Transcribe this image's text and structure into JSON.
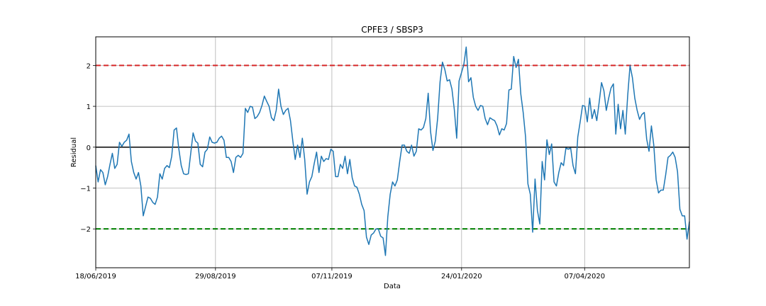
{
  "chart_data": {
    "type": "line",
    "title": "CPFE3 / SBSP3",
    "xlabel": "Data",
    "ylabel": "Residual",
    "xlim": [
      "18/06/2019",
      "09/06/2020"
    ],
    "ylim": [
      -2.95,
      2.7
    ],
    "grid": true,
    "x_ticks": [
      "18/06/2019",
      "29/08/2019",
      "07/11/2019",
      "24/01/2020",
      "07/04/2020"
    ],
    "y_ticks": [
      -2,
      -1,
      0,
      1,
      2
    ],
    "reference_lines": [
      {
        "value": 2,
        "color": "#d62728",
        "style": "dashed"
      },
      {
        "value": 0,
        "color": "#000000",
        "style": "solid"
      },
      {
        "value": -2,
        "color": "#008000",
        "style": "dashed"
      }
    ],
    "series": [
      {
        "color": "#1f77b4",
        "values": [
          -0.45,
          -0.85,
          -0.55,
          -0.62,
          -0.92,
          -0.72,
          -0.42,
          -0.15,
          -0.52,
          -0.42,
          0.12,
          0.02,
          0.12,
          0.17,
          0.32,
          -0.35,
          -0.62,
          -0.78,
          -0.62,
          -0.95,
          -1.68,
          -1.45,
          -1.22,
          -1.25,
          -1.35,
          -1.4,
          -1.22,
          -0.65,
          -0.78,
          -0.52,
          -0.45,
          -0.5,
          -0.22,
          0.42,
          0.47,
          -0.05,
          -0.45,
          -0.65,
          -0.67,
          -0.65,
          -0.15,
          0.35,
          0.15,
          0.1,
          -0.42,
          -0.48,
          -0.12,
          -0.05,
          0.25,
          0.12,
          0.1,
          0.12,
          0.22,
          0.27,
          0.17,
          -0.25,
          -0.25,
          -0.35,
          -0.62,
          -0.25,
          -0.2,
          -0.25,
          -0.15,
          0.95,
          0.85,
          1.0,
          0.98,
          0.7,
          0.75,
          0.85,
          1.02,
          1.25,
          1.12,
          1.0,
          0.72,
          0.65,
          0.9,
          1.42,
          1.0,
          0.8,
          0.9,
          0.95,
          0.65,
          0.15,
          -0.3,
          0.05,
          -0.25,
          0.22,
          -0.3,
          -1.15,
          -0.85,
          -0.72,
          -0.4,
          -0.12,
          -0.62,
          -0.22,
          -0.35,
          -0.28,
          -0.3,
          -0.05,
          -0.1,
          -0.72,
          -0.72,
          -0.42,
          -0.52,
          -0.22,
          -0.65,
          -0.3,
          -0.75,
          -0.95,
          -0.98,
          -1.15,
          -1.4,
          -1.55,
          -2.2,
          -2.38,
          -2.15,
          -2.1,
          -2.0,
          -2.0,
          -2.18,
          -2.22,
          -2.65,
          -1.7,
          -1.15,
          -0.85,
          -0.95,
          -0.8,
          -0.35,
          0.05,
          0.05,
          -0.1,
          -0.15,
          0.05,
          -0.22,
          -0.1,
          0.45,
          0.42,
          0.48,
          0.7,
          1.32,
          0.38,
          -0.08,
          0.15,
          0.72,
          1.6,
          2.08,
          1.9,
          1.62,
          1.65,
          1.42,
          0.92,
          0.22,
          1.62,
          1.82,
          2.02,
          2.45,
          1.6,
          1.7,
          1.22,
          1.0,
          0.9,
          1.02,
          1.0,
          0.7,
          0.55,
          0.72,
          0.68,
          0.65,
          0.52,
          0.3,
          0.45,
          0.42,
          0.58,
          1.4,
          1.42,
          2.22,
          1.95,
          2.15,
          1.3,
          0.85,
          0.25,
          -0.9,
          -1.15,
          -2.08,
          -0.78,
          -1.55,
          -1.88,
          -0.35,
          -0.8,
          0.18,
          -0.18,
          0.08,
          -0.85,
          -0.95,
          -0.62,
          -0.38,
          -0.45,
          -0.02,
          -0.05,
          -0.02,
          -0.45,
          -0.65,
          0.25,
          0.62,
          1.02,
          1.0,
          0.62,
          1.2,
          0.7,
          0.92,
          0.65,
          1.1,
          1.58,
          1.38,
          0.9,
          1.2,
          1.45,
          1.55,
          0.32,
          1.05,
          0.45,
          0.9,
          0.32,
          1.25,
          2.0,
          1.7,
          1.2,
          0.9,
          0.68,
          0.8,
          0.85,
          0.2,
          -0.1,
          0.52,
          0.05,
          -0.8,
          -1.12,
          -1.05,
          -1.05,
          -0.68,
          -0.25,
          -0.2,
          -0.12,
          -0.25,
          -0.6,
          -1.52,
          -1.68,
          -1.68,
          -2.25,
          -1.82
        ]
      }
    ]
  }
}
